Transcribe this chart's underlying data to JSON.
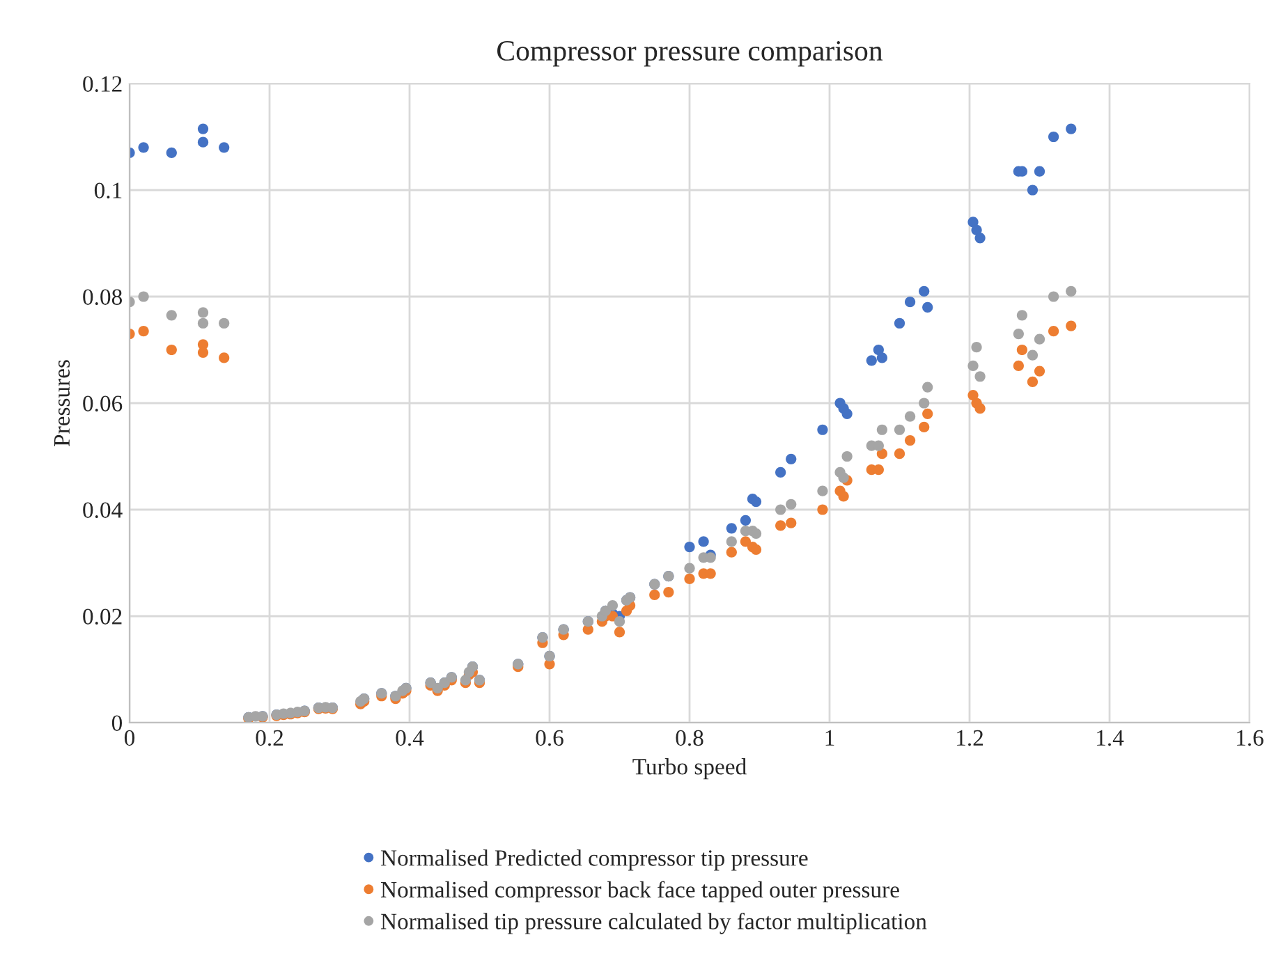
{
  "chart_data": {
    "type": "scatter",
    "title": "Compressor pressure comparison",
    "xlabel": "Turbo speed",
    "ylabel": "Pressures",
    "x": [
      0,
      0.02,
      0.06,
      0.105,
      0.105,
      0.135,
      0.17,
      0.18,
      0.19,
      0.21,
      0.22,
      0.23,
      0.24,
      0.25,
      0.27,
      0.28,
      0.29,
      0.33,
      0.335,
      0.36,
      0.38,
      0.39,
      0.395,
      0.43,
      0.44,
      0.45,
      0.46,
      0.48,
      0.485,
      0.49,
      0.5,
      0.555,
      0.59,
      0.6,
      0.62,
      0.655,
      0.675,
      0.68,
      0.69,
      0.7,
      0.71,
      0.715,
      0.75,
      0.77,
      0.8,
      0.82,
      0.83,
      0.86,
      0.88,
      0.89,
      0.895,
      0.93,
      0.945,
      0.99,
      1.015,
      1.02,
      1.025,
      1.06,
      1.07,
      1.075,
      1.1,
      1.115,
      1.135,
      1.14,
      1.205,
      1.21,
      1.215,
      1.27,
      1.275,
      1.29,
      1.3,
      1.32,
      1.345
    ],
    "series": [
      {
        "name": "Normalised Predicted compressor tip pressure",
        "color": "#4472c4",
        "values": [
          0.107,
          0.108,
          0.107,
          0.1115,
          0.109,
          0.108,
          0.001,
          null,
          0.0012,
          0.0015,
          null,
          null,
          null,
          0.0022,
          0.0028,
          null,
          0.0028,
          null,
          0.0045,
          0.0055,
          0.005,
          null,
          0.0065,
          0.0075,
          null,
          0.0075,
          0.0085,
          null,
          null,
          0.0105,
          0.008,
          0.011,
          0.016,
          0.0125,
          0.0175,
          0.019,
          null,
          0.021,
          0.0205,
          0.02,
          0.023,
          0.0235,
          0.026,
          0.0275,
          0.033,
          0.034,
          0.0315,
          0.0365,
          0.038,
          0.042,
          0.0415,
          0.047,
          0.0495,
          0.055,
          0.06,
          0.059,
          0.058,
          0.068,
          0.07,
          0.0685,
          0.075,
          0.079,
          0.081,
          0.078,
          0.094,
          0.0925,
          0.091,
          0.1035,
          0.1035,
          0.1,
          0.1035,
          0.11,
          0.1115
        ]
      },
      {
        "name": "Normalised compressor back face tapped outer pressure",
        "color": "#ed7d31",
        "values": [
          0.073,
          0.0735,
          0.07,
          0.071,
          0.0695,
          0.0685,
          0.0008,
          null,
          0.001,
          0.0013,
          0.0015,
          0.0016,
          0.0018,
          0.002,
          0.0026,
          0.0027,
          0.0026,
          0.0035,
          0.004,
          0.005,
          0.0045,
          0.0055,
          0.006,
          0.007,
          0.006,
          0.007,
          0.008,
          0.0075,
          0.009,
          0.0095,
          0.0075,
          0.0105,
          0.015,
          0.011,
          0.0165,
          0.0175,
          0.019,
          0.02,
          0.02,
          0.017,
          0.021,
          0.022,
          0.024,
          0.0245,
          0.027,
          0.028,
          0.028,
          0.032,
          0.034,
          0.033,
          0.0325,
          0.037,
          0.0375,
          0.04,
          0.0435,
          0.0425,
          0.0455,
          0.0475,
          0.0475,
          0.0505,
          0.0505,
          0.053,
          0.0555,
          0.058,
          0.0615,
          0.06,
          0.059,
          0.067,
          0.07,
          0.064,
          0.066,
          0.0735,
          0.0745
        ]
      },
      {
        "name": "Normalised tip pressure calculated by factor multiplication",
        "color": "#a5a5a5",
        "values": [
          0.079,
          0.08,
          0.0765,
          0.077,
          0.075,
          0.075,
          0.001,
          0.0012,
          0.0012,
          0.0015,
          0.0017,
          0.0018,
          0.002,
          0.0022,
          0.0028,
          0.0029,
          0.0028,
          0.004,
          0.0045,
          0.0055,
          0.005,
          0.006,
          0.0065,
          0.0075,
          0.0065,
          0.0075,
          0.0085,
          0.008,
          0.0095,
          0.0105,
          0.008,
          0.011,
          0.016,
          0.0125,
          0.0175,
          0.019,
          0.02,
          0.021,
          0.022,
          0.019,
          0.023,
          0.0235,
          0.026,
          0.0275,
          0.029,
          0.031,
          0.031,
          0.034,
          0.036,
          0.036,
          0.0355,
          0.04,
          0.041,
          0.0435,
          0.047,
          0.046,
          0.05,
          0.052,
          0.052,
          0.055,
          0.055,
          0.0575,
          0.06,
          0.063,
          0.067,
          0.0705,
          0.065,
          0.073,
          0.0765,
          0.069,
          0.072,
          0.08,
          0.081
        ]
      }
    ],
    "xlim": [
      0,
      1.6
    ],
    "xticks": [
      0,
      0.2,
      0.4,
      0.6,
      0.8,
      1,
      1.2,
      1.4,
      1.6
    ],
    "ylim": [
      0,
      0.12
    ],
    "yticks": [
      0,
      0.02,
      0.04,
      0.06,
      0.08,
      0.1,
      0.12
    ],
    "grid": true,
    "legend": "bottom",
    "marker": "circle"
  }
}
